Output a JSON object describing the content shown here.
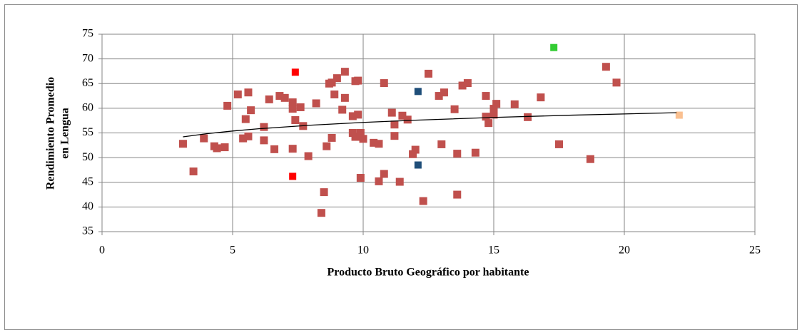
{
  "chart_data": {
    "type": "scatter",
    "xlabel": "Producto Bruto Geográfico por habitante",
    "ylabel": [
      "Rendimiento Promedio",
      "en Lengua"
    ],
    "xlim": [
      0,
      25
    ],
    "xticks": [
      0,
      5,
      10,
      15,
      20,
      25
    ],
    "ylim": [
      35,
      75
    ],
    "yticks": [
      35,
      40,
      45,
      50,
      55,
      60,
      65,
      70,
      75
    ],
    "grid": true,
    "series": [
      {
        "color": "#c0504d",
        "x": [
          3.1,
          3.5,
          3.9,
          4.3,
          4.4,
          4.7,
          4.8,
          5.2,
          5.4,
          5.5,
          5.6,
          5.6,
          5.7,
          6.2,
          6.2,
          6.4,
          6.6,
          6.8,
          7.0,
          7.3,
          7.3,
          7.3,
          7.4,
          7.6,
          7.7,
          7.9,
          8.2,
          8.4,
          8.5,
          8.6,
          8.7,
          8.8,
          8.8,
          8.9,
          9.0,
          9.2,
          9.3,
          9.3,
          9.6,
          9.6,
          9.7,
          9.7,
          9.8,
          9.8,
          9.9,
          9.9,
          10.0,
          10.4,
          10.6,
          10.6,
          10.8,
          10.8,
          11.1,
          11.2,
          11.2,
          11.4,
          11.5,
          11.7,
          11.9,
          12.0,
          12.3,
          12.5,
          12.9,
          13.0,
          13.1,
          13.5,
          13.6,
          13.6,
          13.8,
          14.0,
          14.3,
          14.7,
          14.7,
          14.8,
          15.0,
          15.1,
          15.0,
          15.8,
          16.3,
          16.8,
          17.5,
          18.7,
          19.3,
          19.7
        ],
        "values": [
          52.8,
          47.2,
          53.9,
          52.3,
          51.9,
          52.1,
          60.5,
          62.8,
          53.9,
          57.8,
          54.3,
          63.2,
          59.6,
          56.2,
          53.5,
          61.8,
          51.7,
          62.5,
          62.1,
          51.8,
          61.2,
          59.9,
          57.6,
          60.2,
          56.4,
          50.3,
          61.0,
          38.8,
          43.0,
          52.3,
          65.0,
          54.0,
          65.2,
          62.8,
          66.1,
          59.7,
          62.1,
          67.4,
          58.4,
          55.0,
          54.2,
          65.5,
          65.6,
          58.7,
          45.9,
          55.0,
          53.8,
          53.0,
          52.8,
          45.2,
          65.1,
          46.7,
          59.1,
          56.7,
          54.4,
          45.1,
          58.5,
          57.7,
          50.7,
          51.6,
          41.2,
          67.0,
          62.5,
          52.7,
          63.2,
          59.8,
          50.8,
          42.5,
          64.6,
          65.1,
          51.0,
          62.5,
          58.3,
          57.0,
          59.9,
          60.9,
          58.7,
          60.8,
          58.2,
          62.2,
          52.7,
          49.7,
          68.4,
          65.2
        ]
      },
      {
        "color": "#ff0000",
        "x": [
          7.4,
          7.3
        ],
        "values": [
          67.3,
          46.2
        ]
      },
      {
        "color": "#1f4e79",
        "x": [
          12.1,
          12.1
        ],
        "values": [
          63.4,
          48.5
        ]
      },
      {
        "color": "#33cc33",
        "x": [
          17.3
        ],
        "values": [
          72.3
        ]
      },
      {
        "color": "#fac090",
        "x": [
          22.1
        ],
        "values": [
          58.6
        ]
      }
    ],
    "trendline": {
      "color": "#000000",
      "x": [
        3.1,
        4,
        5,
        6,
        8,
        10,
        12,
        15,
        18,
        22
      ],
      "values": [
        54.2,
        54.84,
        55.39,
        55.85,
        56.57,
        57.13,
        57.58,
        58.14,
        58.6,
        59.1
      ]
    }
  }
}
